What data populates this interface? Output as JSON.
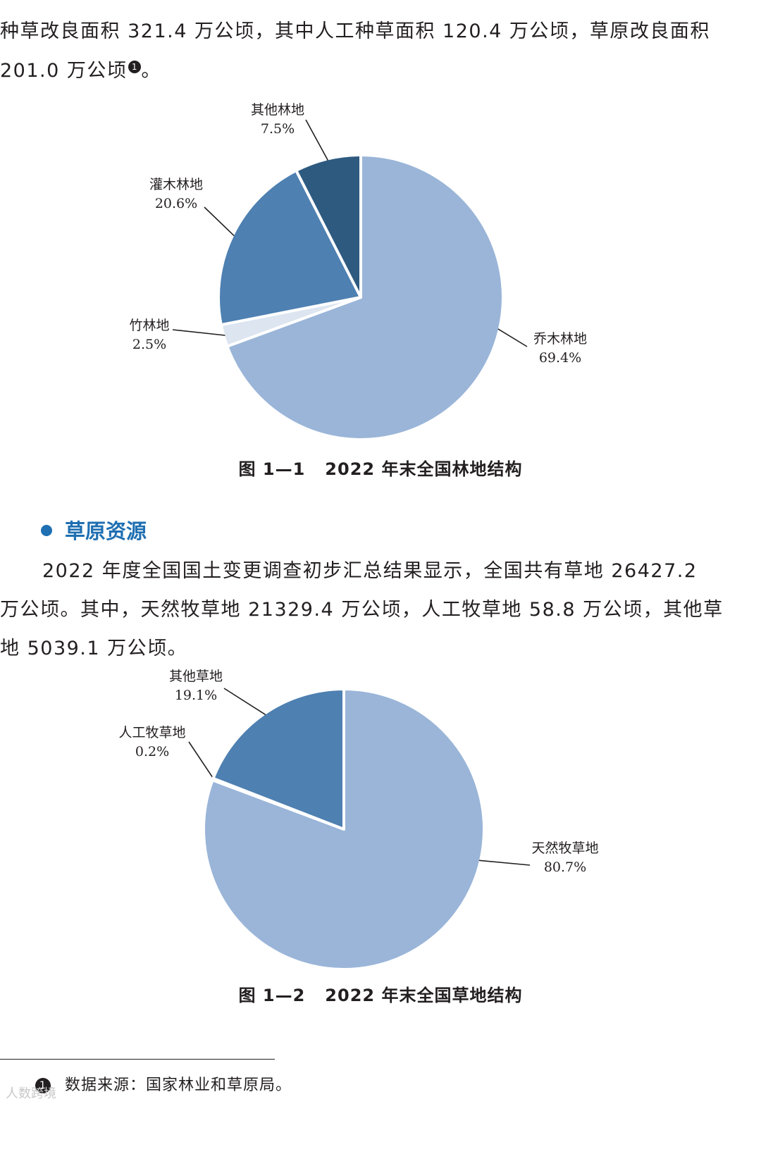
{
  "paragraphs": {
    "intro_line1": "种草改良面积 321.4 万公顷，其中人工种草面积 120.4 万公顷，草原改良面积",
    "intro_line2": "201.0 万公顷",
    "intro_note": "1",
    "intro_end": "。"
  },
  "figure1": {
    "caption_number": "图 1—1",
    "caption_title": "2022 年末全国林地结构"
  },
  "section": {
    "title": "草原资源"
  },
  "grassland_text": {
    "line1": "2022 年度全国国土变更调查初步汇总结果显示，全国共有草地 26427.2",
    "line2": "万公顷。其中，天然牧草地 21329.4 万公顷，人工牧草地 58.8 万公顷，其他草",
    "line3": "地 5039.1 万公顷。"
  },
  "figure2": {
    "caption_number": "图 1—2",
    "caption_title": "2022 年末全国草地结构"
  },
  "footnote": {
    "marker": "1",
    "text": "数据来源：国家林业和草原局。"
  },
  "watermark": "人数跨境",
  "chart_data": [
    {
      "type": "pie",
      "title": "2022 年末全国林地结构",
      "slices": [
        {
          "name": "乔木林地",
          "value": 69.4,
          "label": "69.4%",
          "color": "#9ab5d8"
        },
        {
          "name": "竹林地",
          "value": 2.5,
          "label": "2.5%",
          "color": "#dce5f0"
        },
        {
          "name": "灌木林地",
          "value": 20.6,
          "label": "20.6%",
          "color": "#4e80b1"
        },
        {
          "name": "其他林地",
          "value": 7.5,
          "label": "7.5%",
          "color": "#2e5a80"
        }
      ]
    },
    {
      "type": "pie",
      "title": "2022 年末全国草地结构",
      "slices": [
        {
          "name": "天然牧草地",
          "value": 80.7,
          "label": "80.7%",
          "color": "#9ab5d8"
        },
        {
          "name": "人工牧草地",
          "value": 0.2,
          "label": "0.2%",
          "color": "#dce5f0"
        },
        {
          "name": "其他草地",
          "value": 19.1,
          "label": "19.1%",
          "color": "#4e80b1"
        }
      ]
    }
  ]
}
